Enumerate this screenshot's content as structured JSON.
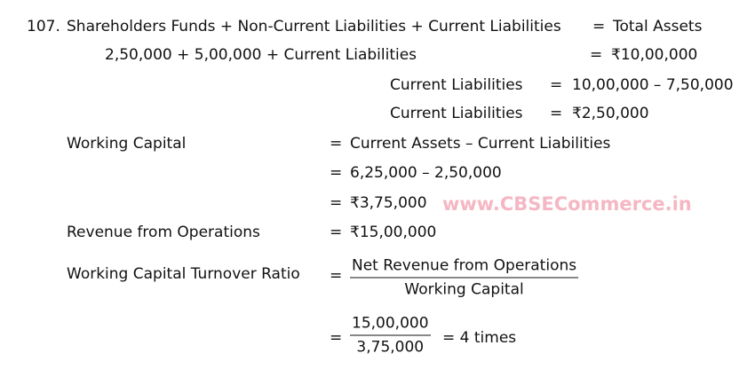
{
  "question_number": "107.",
  "lines": {
    "l1_left": "Shareholders Funds + Non-Current Liabilities + Current Liabilities",
    "l1_eq": "=",
    "l1_right": "Total Assets",
    "l2_left": "2,50,000 + 5,00,000 + Current Liabilities",
    "l2_eq": "=",
    "l2_right": "₹10,00,000",
    "l3_left": "Current Liabilities",
    "l3_eq": "=",
    "l3_right": "10,00,000 – 7,50,000",
    "l4_left": "Current Liabilities",
    "l4_eq": "=",
    "l4_right": "₹2,50,000",
    "l5_left": "Working Capital",
    "l5_eq": "=",
    "l5_right": "Current Assets – Current Liabilities",
    "l6_eq": "=",
    "l6_right": "6,25,000 – 2,50,000",
    "l7_eq": "=",
    "l7_right": "₹3,75,000",
    "l8_left": "Revenue from Operations",
    "l8_eq": "=",
    "l8_right": "₹15,00,000",
    "l9_left": "Working Capital Turnover Ratio",
    "l9_eq": "=",
    "l9_num": "Net Revenue from Operations",
    "l9_den": "Working Capital",
    "l10_eq": "=",
    "l10_num": "15,00,000",
    "l10_den": "3,75,000",
    "l10_result": "= 4 times"
  },
  "watermark": "www.CBSECommerce.in"
}
